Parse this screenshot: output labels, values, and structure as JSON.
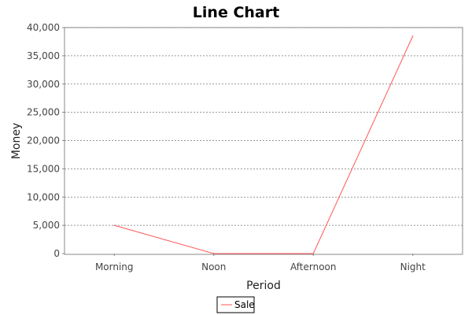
{
  "chart_data": {
    "type": "line",
    "title": "Line Chart",
    "xlabel": "Period",
    "ylabel": "Money",
    "categories": [
      "Morning",
      "Noon",
      "Afternoon",
      "Night"
    ],
    "series": [
      {
        "name": "Sale",
        "values": [
          5000,
          0,
          0,
          38500
        ],
        "color": "#ff5555"
      }
    ],
    "ylim": [
      0,
      40000
    ],
    "yticks": [
      0,
      5000,
      10000,
      15000,
      20000,
      25000,
      30000,
      35000,
      40000
    ],
    "ytick_labels": [
      "0",
      "5,000",
      "10,000",
      "15,000",
      "20,000",
      "25,000",
      "30,000",
      "35,000",
      "40,000"
    ],
    "grid": true,
    "legend": "bottom-center"
  }
}
